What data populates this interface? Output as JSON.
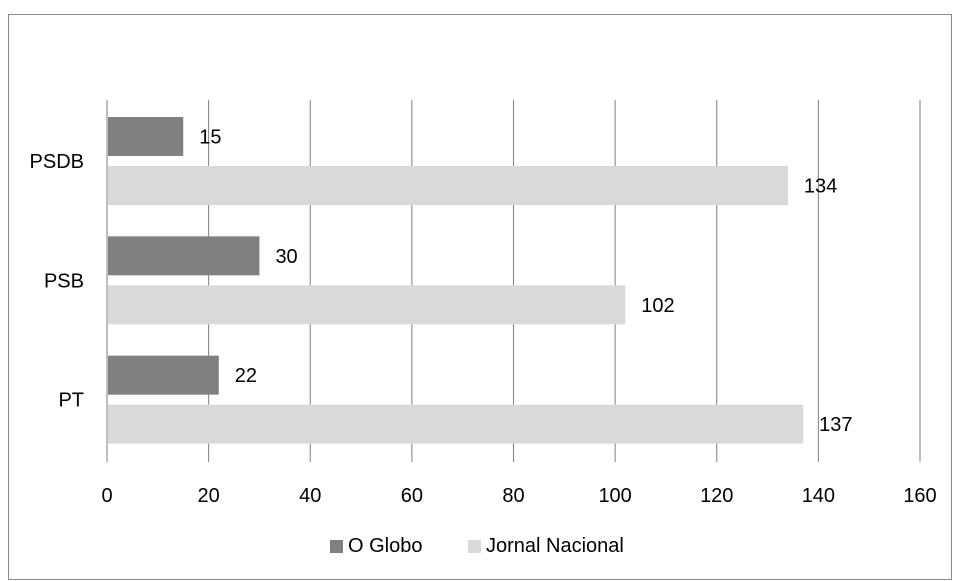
{
  "chart_data": {
    "type": "bar",
    "orientation": "horizontal",
    "categories": [
      "PSDB",
      "PSB",
      "PT"
    ],
    "series": [
      {
        "name": "O Globo",
        "values": [
          15,
          30,
          22
        ],
        "color": "#808080"
      },
      {
        "name": "Jornal Nacional",
        "values": [
          134,
          102,
          137
        ],
        "color": "#d9d9d9"
      }
    ],
    "xlim": [
      0,
      160
    ],
    "xticks": [
      "0",
      "20",
      "40",
      "60",
      "80",
      "100",
      "120",
      "140",
      "160"
    ],
    "grid": "vertical",
    "legend_position": "bottom",
    "title": "",
    "xlabel": "",
    "ylabel": ""
  }
}
